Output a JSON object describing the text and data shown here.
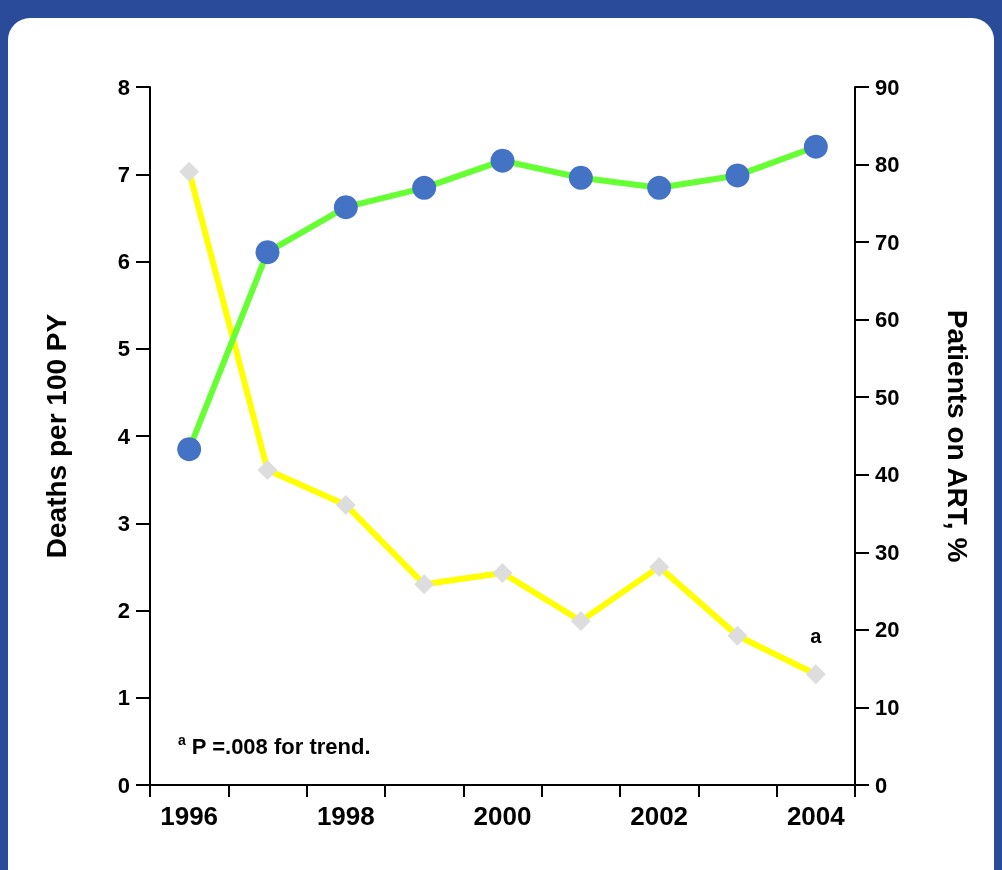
{
  "chart_data": {
    "type": "line",
    "ylabel": "Deaths per 100 PY",
    "y2label": "Patients on ART, %",
    "categories": [
      "1996",
      null,
      "1998",
      null,
      "2000",
      null,
      "2002",
      null,
      "2004"
    ],
    "series": [
      {
        "color": "#ffff00",
        "marker": "diamond",
        "colors": [
          "#dddddd",
          "#dddddd",
          "#dddddd",
          "#dddddd",
          "#dddddd",
          "#dddddd",
          "#dddddd",
          "#dddddd",
          "#dddddd"
        ],
        "values": [
          7.03,
          3.61,
          3.21,
          2.3,
          2.43,
          1.88,
          2.5,
          1.71,
          1.27
        ]
      },
      {
        "color": "#66ff33",
        "marker": "circle",
        "axis": "y2",
        "colors": [
          "#4472c4",
          "#4472c4",
          "#4472c4",
          "#4472c4",
          "#4472c4",
          "#4472c4",
          "#4472c4",
          "#4472c4",
          "#4472c4"
        ],
        "values": [
          43.3,
          68.7,
          74.5,
          77.0,
          80.5,
          78.3,
          77.0,
          78.6,
          82.3
        ]
      }
    ],
    "ylim": [
      0,
      8
    ],
    "yticks": [
      0,
      1,
      2,
      3,
      4,
      5,
      6,
      7,
      8
    ],
    "y2lim": [
      0,
      90
    ],
    "y2ticks": [
      0,
      10,
      20,
      30,
      40,
      50,
      60,
      70,
      80,
      90
    ],
    "grid": false,
    "line_style": "solid",
    "annotations": [
      {
        "text": "a",
        "x": "2004",
        "y": 1.27
      },
      "$^{a}$P =.008 for trend."
    ]
  }
}
